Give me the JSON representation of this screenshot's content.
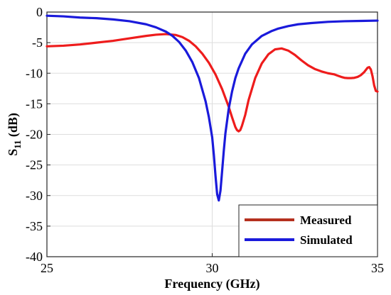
{
  "chart_data": {
    "type": "line",
    "title": "",
    "xlabel": "Frequency (GHz)",
    "ylabel": {
      "main": "S",
      "sub": "11",
      "unit": " (dB)"
    },
    "xlim": [
      25,
      35
    ],
    "ylim": [
      -40,
      0
    ],
    "xticks": [
      25,
      30,
      35
    ],
    "yticks": [
      0,
      -5,
      -10,
      -15,
      -20,
      -25,
      -30,
      -35,
      -40
    ],
    "grid": "both",
    "legend_position": "bottom-right",
    "series": [
      {
        "name": "Measured",
        "color": "#ee1c1c",
        "legend_color": "#b5301f",
        "x": [
          25,
          25.5,
          26,
          26.5,
          27,
          27.5,
          28,
          28.3,
          28.6,
          28.9,
          29.1,
          29.3,
          29.5,
          29.7,
          29.9,
          30.1,
          30.3,
          30.5,
          30.6,
          30.7,
          30.75,
          30.8,
          30.85,
          30.9,
          31.0,
          31.1,
          31.3,
          31.5,
          31.7,
          31.9,
          32.1,
          32.3,
          32.5,
          32.7,
          32.9,
          33.1,
          33.3,
          33.5,
          33.7,
          33.8,
          33.9,
          34.0,
          34.1,
          34.2,
          34.3,
          34.4,
          34.5,
          34.6,
          34.7,
          34.75,
          34.8,
          34.85,
          34.9,
          34.95,
          35
        ],
        "y": [
          -5.6,
          -5.5,
          -5.3,
          -5.0,
          -4.7,
          -4.3,
          -3.9,
          -3.7,
          -3.6,
          -3.75,
          -4.1,
          -4.7,
          -5.6,
          -6.8,
          -8.3,
          -10.2,
          -12.6,
          -15.5,
          -17.2,
          -18.8,
          -19.3,
          -19.5,
          -19.3,
          -18.6,
          -16.8,
          -14.4,
          -10.8,
          -8.4,
          -6.9,
          -6.1,
          -5.95,
          -6.3,
          -7.0,
          -7.9,
          -8.7,
          -9.3,
          -9.7,
          -10.0,
          -10.2,
          -10.4,
          -10.6,
          -10.75,
          -10.8,
          -10.8,
          -10.75,
          -10.6,
          -10.3,
          -9.8,
          -9.1,
          -9.0,
          -9.4,
          -10.5,
          -12.0,
          -12.9,
          -13.0
        ]
      },
      {
        "name": "Simulated",
        "color": "#1a1adb",
        "legend_color": "#1a1adb",
        "x": [
          25,
          25.5,
          26,
          26.5,
          27,
          27.5,
          28,
          28.3,
          28.6,
          28.8,
          29.0,
          29.2,
          29.4,
          29.6,
          29.8,
          29.9,
          30.0,
          30.05,
          30.1,
          30.15,
          30.2,
          30.25,
          30.3,
          30.35,
          30.4,
          30.5,
          30.6,
          30.7,
          30.8,
          31.0,
          31.2,
          31.5,
          31.8,
          32.0,
          32.3,
          32.6,
          33.0,
          33.5,
          34.0,
          34.5,
          35
        ],
        "y": [
          -0.6,
          -0.7,
          -0.9,
          -1.0,
          -1.2,
          -1.5,
          -2.0,
          -2.5,
          -3.2,
          -3.9,
          -4.9,
          -6.3,
          -8.2,
          -10.8,
          -14.6,
          -17.2,
          -20.5,
          -23.4,
          -26.8,
          -29.8,
          -30.8,
          -29.2,
          -26.0,
          -22.7,
          -19.8,
          -15.8,
          -13.0,
          -10.8,
          -9.2,
          -6.8,
          -5.3,
          -3.9,
          -3.1,
          -2.7,
          -2.3,
          -2.0,
          -1.8,
          -1.6,
          -1.5,
          -1.45,
          -1.4
        ]
      }
    ]
  }
}
